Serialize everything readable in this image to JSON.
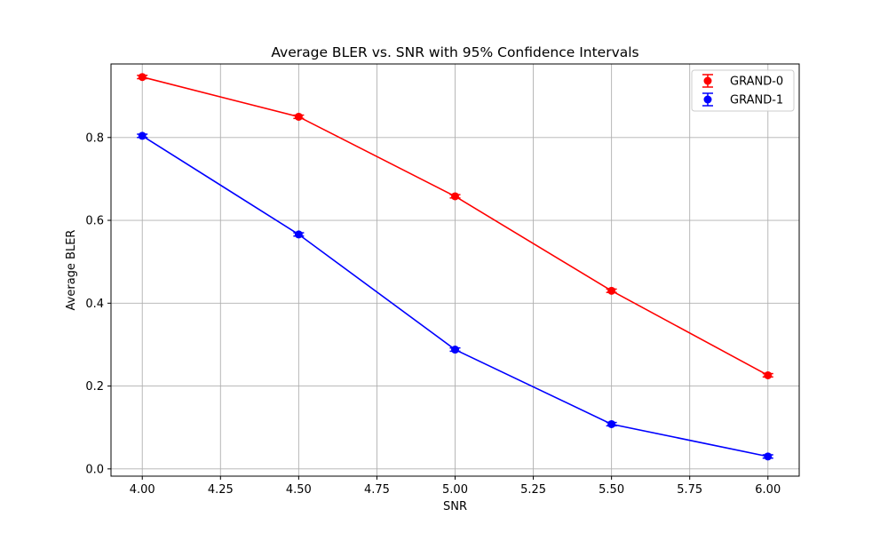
{
  "chart_data": {
    "type": "line",
    "title": "Average BLER vs. SNR with 95% Confidence Intervals",
    "xlabel": "SNR",
    "ylabel": "Average BLER",
    "x": [
      4.0,
      4.5,
      5.0,
      5.5,
      6.0
    ],
    "xlim": [
      3.9,
      6.1
    ],
    "ylim": [
      -0.0175,
      0.9775
    ],
    "xticks": [
      4.0,
      4.25,
      4.5,
      4.75,
      5.0,
      5.25,
      5.5,
      5.75,
      6.0
    ],
    "xtick_labels": [
      "4.00",
      "4.25",
      "4.50",
      "4.75",
      "5.00",
      "5.25",
      "5.50",
      "5.75",
      "6.00"
    ],
    "yticks": [
      0.0,
      0.2,
      0.4,
      0.6,
      0.8
    ],
    "ytick_labels": [
      "0.0",
      "0.2",
      "0.4",
      "0.6",
      "0.8"
    ],
    "grid": true,
    "legend_position": "top-right",
    "series": [
      {
        "name": "GRAND-0",
        "color": "#ff0000",
        "values": [
          0.946,
          0.85,
          0.658,
          0.43,
          0.226
        ],
        "ci": [
          0.004,
          0.004,
          0.004,
          0.004,
          0.004
        ]
      },
      {
        "name": "GRAND-1",
        "color": "#0000ff",
        "values": [
          0.804,
          0.566,
          0.288,
          0.108,
          0.03
        ],
        "ci": [
          0.004,
          0.004,
          0.004,
          0.004,
          0.004
        ]
      }
    ]
  }
}
